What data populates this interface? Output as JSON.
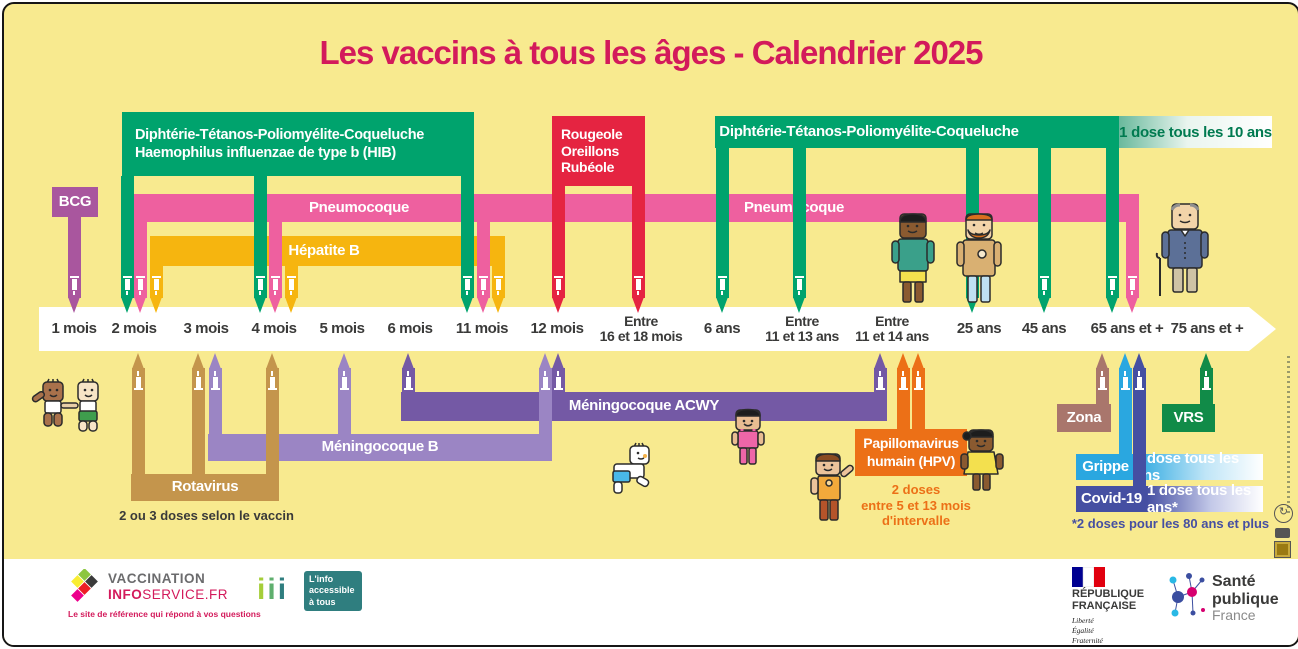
{
  "title": "Les vaccins à tous les âges - Calendrier 2025",
  "colors": {
    "background": "#F8EA8F",
    "title": "#D31A5B",
    "green": "#00A36D",
    "pink": "#EE609F",
    "yellow": "#F6B50F",
    "bcg": "#A9569E",
    "red": "#E52441",
    "tan": "#C4954C",
    "menb": "#9B85C4",
    "acwy": "#7459A5",
    "orange": "#EC7017",
    "zona": "#A9766C",
    "vrs": "#118B48",
    "blue": "#2AA7E0",
    "indigo": "#454FA2"
  },
  "timeline": {
    "ages": [
      "1 mois",
      "2 mois",
      "3 mois",
      "4 mois",
      "5 mois",
      "6 mois",
      "11 mois",
      "12 mois",
      "Entre\n16 et 18 mois",
      "6 ans",
      "Entre\n11 et 13 ans",
      "Entre\n11 et 14 ans",
      "25 ans",
      "45 ans",
      "65 ans et +",
      "75 ans et +"
    ]
  },
  "bands": {
    "bcg": {
      "label": "BCG"
    },
    "dtp_infant": {
      "label": "Diphtérie-Tétanos-Poliomyélite-Coqueluche\nHaemophilus influenzae de type b (HIB)"
    },
    "pneumocoque": {
      "label": "Pneumocoque"
    },
    "hepatite_b": {
      "label": "Hépatite B"
    },
    "ror": {
      "label": "Rougeole\nOreillons\nRubéole"
    },
    "dtp_adult": {
      "label": "Diphtérie-Tétanos-Poliomyélite-Coqueluche",
      "note": "1 dose tous les 10 ans"
    },
    "rotavirus": {
      "label": "Rotavirus",
      "note": "2 ou 3 doses selon le vaccin"
    },
    "meningocoque_b": {
      "label": "Méningocoque B"
    },
    "meningocoque_acwy": {
      "label": "Méningocoque ACWY"
    },
    "hpv": {
      "label": "Papillomavirus\nhumain (HPV)",
      "note": "2 doses\nentre 5 et 13 mois\nd'intervalle"
    },
    "zona": {
      "label": "Zona"
    },
    "vrs": {
      "label": "VRS"
    },
    "grippe": {
      "label": "Grippe",
      "note": "1 dose tous les ans"
    },
    "covid": {
      "label": "Covid-19",
      "note": "1 dose tous les ans*",
      "footnote": "*2 doses pour les 80 ans et plus"
    }
  },
  "footer": {
    "vaccination_info_service": {
      "line1": "VACCINATION",
      "line2_bold": "INFO",
      "line2_rest": "SERVICE.FR",
      "tagline": "Le site de référence qui répond à vos questions"
    },
    "info_accessible": {
      "letters": [
        "i",
        "i",
        "i"
      ],
      "label": "L'info\naccessible\nà tous"
    },
    "republique_francaise": {
      "line1": "RÉPUBLIQUE",
      "line2": "FRANÇAISE",
      "motto": "Liberté\nÉgalité\nFraternité"
    },
    "sante_publique": {
      "line1": "Santé",
      "line2": "publique",
      "line3": "France"
    }
  }
}
